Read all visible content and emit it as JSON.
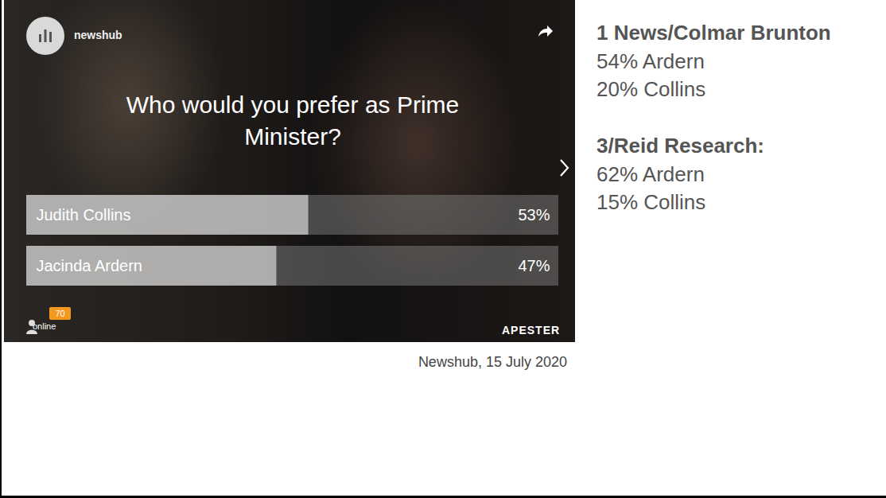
{
  "chart_data": {
    "type": "bar",
    "orientation": "horizontal",
    "title": "Who would you prefer as Prime Minister?",
    "categories": [
      "Judith Collins",
      "Jacinda Ardern"
    ],
    "values": [
      53,
      47
    ],
    "value_labels": [
      "53%",
      "47%"
    ],
    "data_labels": true,
    "xlim": [
      0,
      100
    ],
    "tick_labels": false,
    "color": "#e8e8e8"
  },
  "widget": {
    "brand": "newshub",
    "online": {
      "count": 70,
      "label": "online"
    },
    "footer": "APESTER"
  },
  "caption": "Newshub, 15 July 2020",
  "other_polls": [
    {
      "title": "1 News/Colmar Brunton",
      "lines": [
        "54% Ardern",
        "20% Collins"
      ]
    },
    {
      "title": "3/Reid Research:",
      "lines": [
        "62% Ardern",
        "15% Collins"
      ]
    }
  ]
}
